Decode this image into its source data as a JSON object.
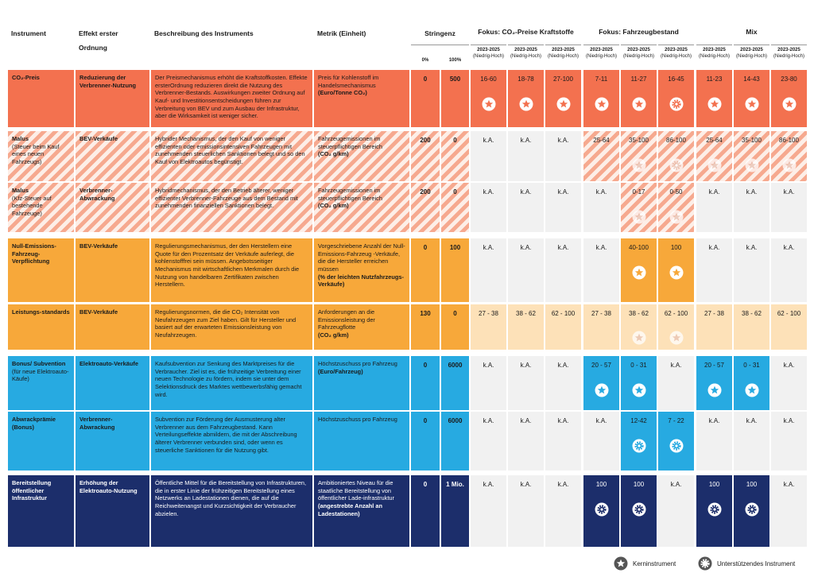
{
  "header": {
    "instrument": "Instrument",
    "effect": "Effekt erster Ordnung",
    "description": "Beschreibung des Instruments",
    "metric": "Metrik (Einheit)",
    "stringency": "Stringenz",
    "stringency_min": "0%",
    "stringency_max": "100%",
    "groups": [
      "Fokus: CO₂-Preise Kraftstoffe",
      "Fokus: Fahrzeugbestand",
      "Mix"
    ],
    "periods": [
      {
        "period": "2023-2025",
        "range": "(Niedrig-Hoch)"
      },
      {
        "period": "2023-2025",
        "range": "(Niedrig-Hoch)"
      },
      {
        "period": "2023-2025",
        "range": "(Niedrig-Hoch)"
      },
      {
        "period": "2023-2025",
        "range": "(Niedrig-Hoch)"
      },
      {
        "period": "2023-2025",
        "range": "(Niedrig-Hoch)"
      },
      {
        "period": "2023-2025",
        "range": "(Niedrig-Hoch)"
      },
      {
        "period": "2023-2025",
        "range": "(Niedrig-Hoch)"
      },
      {
        "period": "2023-2025",
        "range": "(Niedrig-Hoch)"
      },
      {
        "period": "2023-2025",
        "range": "(Niedrig-Hoch)"
      }
    ]
  },
  "rows": [
    {
      "instrument": "CO₂-Preis",
      "effect": "Reduzierung der Verbrenner-Nutzung",
      "description": "Der Preismechanismus erhöht die Kraftstoffkosten. Effekte ersterOrdnung reduzieren direkt die Nutzung des Verbrenner-Bestands. Auswirkungen zweiter Ordnung auf Kauf- und Investitionsentscheidungen führen zur Verbreitung von BEV und zum Ausbau der Infrastruktur, aber die Wirksamkeit ist weniger sicher.",
      "metric": "Preis für Kohlenstoff im Handelsmechanismus",
      "metric_unit": "(Euro/Tonne CO₂)",
      "stringency_min": "0",
      "stringency_max": "500",
      "color": "#f3714f",
      "cell_color": "#f3714f",
      "text_color": "#1a1a1a",
      "cells": [
        {
          "text": "16-60",
          "icon": "core",
          "highlight": true
        },
        {
          "text": "18-78",
          "icon": "core",
          "highlight": true
        },
        {
          "text": "27-100",
          "icon": "core",
          "highlight": true
        },
        {
          "text": "7-11",
          "icon": "core",
          "highlight": true
        },
        {
          "text": "11-27",
          "icon": "core",
          "highlight": true
        },
        {
          "text": "16-45",
          "icon": "support",
          "highlight": true
        },
        {
          "text": "11-23",
          "icon": "core",
          "highlight": true
        },
        {
          "text": "14-43",
          "icon": "core",
          "highlight": true
        },
        {
          "text": "23-80",
          "icon": "core",
          "highlight": true
        }
      ]
    },
    {
      "instrument": "Malus",
      "instrument_note": "(Steuer beim Kauf eines neuen Fahrzeugs)",
      "effect": "BEV-Verkäufe",
      "description": "Hybrider Mechanismus, der den Kauf von weniger effizienten oder emissionsintensiven Fahrzeugen mit zunehmenden steuerlichen Sanktionen belegt und so den Kauf von Elektroautos begünstigt.",
      "metric": "Fahrzeugemissionen im steuerpflichtigen Bereich",
      "metric_unit": "(CO₂ g/km)",
      "stringency_min": "200",
      "stringency_max": "0",
      "color": "#f6a98f",
      "cell_color": "#f1f1f1",
      "text_color": "#1a1a1a",
      "hatched": true,
      "cells": [
        {
          "text": "k.A."
        },
        {
          "text": "k.A."
        },
        {
          "text": "k.A."
        },
        {
          "text": "25-64",
          "highlight": true
        },
        {
          "text": "35-100",
          "icon": "core",
          "highlight": true
        },
        {
          "text": "86-100",
          "icon": "support",
          "highlight": true
        },
        {
          "text": "25-64",
          "icon": "core",
          "highlight": true
        },
        {
          "text": "35-100",
          "icon": "core",
          "highlight": true
        },
        {
          "text": "86-100",
          "icon": "core",
          "highlight": true
        }
      ]
    },
    {
      "instrument": "Malus",
      "instrument_note": "(Kfz-Steuer auf bestehende Fahrzeuge)",
      "effect": "Verbrenner-Abwrackung",
      "description": "Hybridmechanismus, der den Betrieb älterer, weniger effizienter Verbrenner-Fahrzeuge aus dem Bestand mit zunehmenden finanziellen Sanktionen belegt.",
      "metric": "Fahrzeugemissionen im steuerpflichtigen Bereich",
      "metric_unit": "(CO₂ g/km)",
      "stringency_min": "200",
      "stringency_max": "0",
      "color": "#f6a98f",
      "cell_color": "#f1f1f1",
      "text_color": "#1a1a1a",
      "hatched": true,
      "cells": [
        {
          "text": "k.A."
        },
        {
          "text": "k.A."
        },
        {
          "text": "k.A."
        },
        {
          "text": "k.A."
        },
        {
          "text": "0-17",
          "icon": "core",
          "highlight": true
        },
        {
          "text": "0-50",
          "icon": "core",
          "highlight": true
        },
        {
          "text": "k.A."
        },
        {
          "text": "k.A."
        },
        {
          "text": "k.A."
        }
      ]
    },
    {
      "instrument": "Null-Emissions-Fahrzeug-Verpflichtung",
      "effect": "BEV-Verkäufe",
      "description": "Regulierungsmechanismus, der den Herstellern eine Quote für den Prozentsatz der Verkäufe auferlegt, die kohlenstofffrei sein müssen. Angebotsseitiger Mechanismus mit wirtschaftlichen Merkmalen durch die Nutzung von handelbaren Zertifikaten zwischen Herstellern.",
      "metric": "Vorgeschriebene Anzahl der Null-Emissions-Fahrzeug -Verkäufe, die die Hersteller erreichen müssen",
      "metric_unit": "(% der leichten Nutzfahrzeugs-Verkäufe)",
      "stringency_min": "0",
      "stringency_max": "100",
      "color": "#f7a83a",
      "cell_color": "#f1f1f1",
      "text_color": "#1a1a1a",
      "cells": [
        {
          "text": "k.A."
        },
        {
          "text": "k.A."
        },
        {
          "text": "k.A."
        },
        {
          "text": "k.A."
        },
        {
          "text": "40-100",
          "icon": "core",
          "highlight": true
        },
        {
          "text": "100",
          "icon": "core",
          "highlight": true
        },
        {
          "text": "k.A."
        },
        {
          "text": "k.A."
        },
        {
          "text": "k.A."
        }
      ]
    },
    {
      "instrument": "Leistungs-standards",
      "effect": "BEV-Verkäufe",
      "description": "Regulierungsnormen, die die CO₂ Intensität von Neufahrzeugen zum Ziel haben. Gilt für Hersteller und basiert auf der erwarteten Emissionsleistung von Neufahrzeugen.",
      "metric": "Anforderungen an die Emissionsleistung der Fahrzeugflotte",
      "metric_unit": "(CO₂ g/km)",
      "stringency_min": "130",
      "stringency_max": "0",
      "color": "#f7a83a",
      "cell_color": "#fde1b8",
      "text_color": "#1a1a1a",
      "cells": [
        {
          "text": "27 - 38"
        },
        {
          "text": "38 - 62"
        },
        {
          "text": "62 - 100"
        },
        {
          "text": "27 - 38"
        },
        {
          "text": "38 - 62",
          "icon": "core"
        },
        {
          "text": "62 - 100",
          "icon": "core"
        },
        {
          "text": "27 - 38"
        },
        {
          "text": "38 - 62"
        },
        {
          "text": "62 - 100"
        }
      ]
    },
    {
      "instrument": "Bonus/ Subvention",
      "instrument_note": "(für neue Elektroauto-Käufe)",
      "effect": "Elektroauto-Verkäufe",
      "description": "Kaufsubvention zur Senkung des Marktpreises für die Verbraucher. Ziel ist es, die frühzeitige Verbreitung einer neuen Technologie zu fördern, indem sie unter dem Selektionsdruck des Marktes wettbewerbsfähig gemacht wird.",
      "metric": "Höchstzuschuss pro Fahrzeug",
      "metric_unit": "(Euro/Fahrzeug)",
      "stringency_min": "0",
      "stringency_max": "6000",
      "color": "#27aae1",
      "cell_color": "#f1f1f1",
      "text_color": "#1a1a1a",
      "cells": [
        {
          "text": "k.A."
        },
        {
          "text": "k.A."
        },
        {
          "text": "k.A."
        },
        {
          "text": "20 - 57",
          "icon": "core",
          "highlight": true
        },
        {
          "text": "0 - 31",
          "icon": "core",
          "highlight": true
        },
        {
          "text": "k.A."
        },
        {
          "text": "20 - 57",
          "icon": "core",
          "highlight": true
        },
        {
          "text": "0 - 31",
          "icon": "core",
          "highlight": true
        },
        {
          "text": "k.A."
        }
      ]
    },
    {
      "instrument": "Abwrackprämie (Bonus)",
      "effect": "Verbrenner-Abwrackung",
      "description": "Subvention zur Förderung der Ausmusterung alter Verbrenner aus dem Fahrzeugbestand. Kann Verteilungseffekte abmildern, die mit der Abschreibung älterer Verbrenner verbunden sind, oder wenn es steuerliche Sanktionen für die Nutzung gibt.",
      "metric": "Höchstzuschuss pro Fahrzeug",
      "stringency_min": "0",
      "stringency_max": "6000",
      "color": "#27aae1",
      "cell_color": "#f1f1f1",
      "text_color": "#1a1a1a",
      "cells": [
        {
          "text": "k.A."
        },
        {
          "text": "k.A."
        },
        {
          "text": "k.A."
        },
        {
          "text": "k.A."
        },
        {
          "text": "12-42",
          "icon": "support",
          "highlight": true
        },
        {
          "text": "7 - 22",
          "icon": "support",
          "highlight": true
        },
        {
          "text": "k.A."
        },
        {
          "text": "k.A."
        },
        {
          "text": "k.A."
        }
      ]
    },
    {
      "instrument": "Bereitstellung öffentlicher Infrastruktur",
      "effect": "Erhöhung der Elektroauto-Nutzung",
      "description": "Öffentliche Mittel für die Bereitstellung von Infrastrukturen, die in erster Linie der frühzeitigen Bereitstellung eines Netzwerks an Ladestationen dienen, die auf die Reichweitenangst und Kurzsichtigkeit der Verbraucher abzielen.",
      "metric": "Ambitioniertes Niveau für die staatliche Bereitstellung von öffentlicher Lade-infrastruktur",
      "metric_unit": "(angestrebte Anzahl an Ladestationen)",
      "stringency_min": "0",
      "stringency_max": "1 Mio.",
      "color": "#1c2e6b",
      "cell_color": "#f1f1f1",
      "text_color": "#ffffff",
      "cells": [
        {
          "text": "k.A."
        },
        {
          "text": "k.A."
        },
        {
          "text": "k.A."
        },
        {
          "text": "100",
          "icon": "support",
          "highlight": true
        },
        {
          "text": "100",
          "icon": "support",
          "highlight": true
        },
        {
          "text": "k.A."
        },
        {
          "text": "100",
          "icon": "support",
          "highlight": true
        },
        {
          "text": "100",
          "icon": "support",
          "highlight": true
        },
        {
          "text": "k.A."
        }
      ]
    }
  ],
  "legend": {
    "core": "Kerninstrument",
    "support": "Unterstützendes Instrument"
  }
}
